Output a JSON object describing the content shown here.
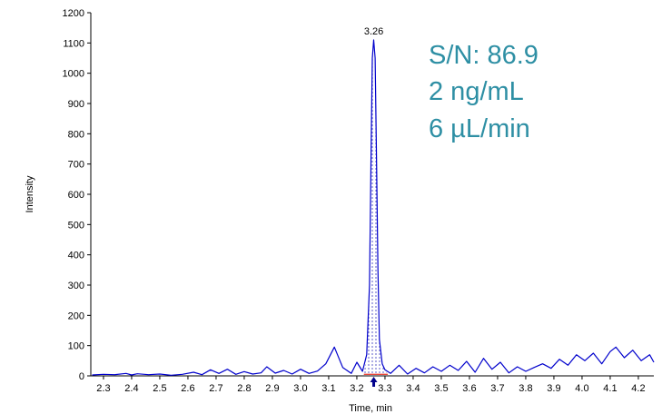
{
  "chart_data": {
    "type": "line",
    "xlabel": "Time, min",
    "ylabel": "Intensity",
    "xlim": [
      2.255,
      4.255
    ],
    "ylim": [
      0,
      1200
    ],
    "x_ticks": [
      "2.3",
      "2.4",
      "2.5",
      "2.6",
      "2.7",
      "2.8",
      "2.9",
      "3.0",
      "3.1",
      "3.2",
      "3.3",
      "3.4",
      "3.5",
      "3.6",
      "3.7",
      "3.8",
      "3.9",
      "4.0",
      "4.1",
      "4.2"
    ],
    "y_ticks": [
      "0",
      "100",
      "200",
      "300",
      "400",
      "500",
      "600",
      "700",
      "800",
      "900",
      "1000",
      "1100",
      "1200"
    ],
    "series": [
      {
        "color": "#0000cc",
        "points": [
          [
            2.26,
            3
          ],
          [
            2.3,
            5
          ],
          [
            2.34,
            4
          ],
          [
            2.38,
            8
          ],
          [
            2.4,
            3
          ],
          [
            2.42,
            7
          ],
          [
            2.46,
            4
          ],
          [
            2.5,
            6
          ],
          [
            2.54,
            2
          ],
          [
            2.58,
            5
          ],
          [
            2.62,
            12
          ],
          [
            2.65,
            4
          ],
          [
            2.68,
            20
          ],
          [
            2.71,
            8
          ],
          [
            2.74,
            22
          ],
          [
            2.77,
            5
          ],
          [
            2.8,
            14
          ],
          [
            2.83,
            6
          ],
          [
            2.86,
            10
          ],
          [
            2.88,
            30
          ],
          [
            2.91,
            9
          ],
          [
            2.94,
            18
          ],
          [
            2.97,
            6
          ],
          [
            3.0,
            22
          ],
          [
            3.03,
            8
          ],
          [
            3.06,
            16
          ],
          [
            3.09,
            40
          ],
          [
            3.12,
            95
          ],
          [
            3.15,
            28
          ],
          [
            3.18,
            8
          ],
          [
            3.2,
            45
          ],
          [
            3.22,
            15
          ],
          [
            3.235,
            70
          ],
          [
            3.245,
            300
          ],
          [
            3.25,
            700
          ],
          [
            3.255,
            1050
          ],
          [
            3.26,
            1110
          ],
          [
            3.265,
            1050
          ],
          [
            3.27,
            700
          ],
          [
            3.275,
            350
          ],
          [
            3.28,
            120
          ],
          [
            3.29,
            40
          ],
          [
            3.3,
            20
          ],
          [
            3.32,
            8
          ],
          [
            3.35,
            35
          ],
          [
            3.38,
            6
          ],
          [
            3.41,
            25
          ],
          [
            3.44,
            10
          ],
          [
            3.47,
            30
          ],
          [
            3.5,
            15
          ],
          [
            3.53,
            35
          ],
          [
            3.56,
            18
          ],
          [
            3.59,
            48
          ],
          [
            3.62,
            12
          ],
          [
            3.65,
            58
          ],
          [
            3.68,
            22
          ],
          [
            3.71,
            45
          ],
          [
            3.74,
            10
          ],
          [
            3.77,
            30
          ],
          [
            3.8,
            15
          ],
          [
            3.83,
            28
          ],
          [
            3.86,
            40
          ],
          [
            3.89,
            25
          ],
          [
            3.92,
            55
          ],
          [
            3.95,
            35
          ],
          [
            3.98,
            70
          ],
          [
            4.01,
            50
          ],
          [
            4.04,
            75
          ],
          [
            4.07,
            40
          ],
          [
            4.1,
            80
          ],
          [
            4.12,
            95
          ],
          [
            4.15,
            60
          ],
          [
            4.18,
            85
          ],
          [
            4.21,
            50
          ],
          [
            4.24,
            70
          ],
          [
            4.255,
            45
          ]
        ]
      }
    ],
    "peak": {
      "label": "3.26",
      "x": 3.26,
      "y": 1110,
      "start": 3.225,
      "end": 3.31
    },
    "baseline": {
      "x1": 3.225,
      "x2": 3.31,
      "y": 5,
      "color": "#e8463a"
    },
    "annotations": [
      "S/N: 86.9",
      "2 ng/mL",
      "6 µL/min"
    ],
    "annotation_color": "#2e8fa4",
    "grid": false
  }
}
